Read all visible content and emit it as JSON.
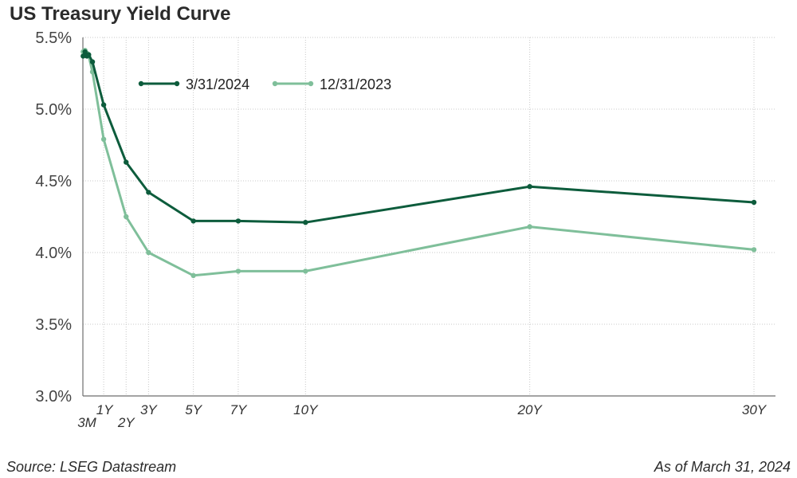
{
  "chart_data": {
    "type": "line",
    "title": "US Treasury Yield Curve",
    "xlabel": "",
    "ylabel": "",
    "unit": "%",
    "ylim": [
      3.0,
      5.5
    ],
    "yticks": [
      "3.0%",
      "3.5%",
      "4.0%",
      "4.5%",
      "5.0%",
      "5.5%"
    ],
    "ytick_values": [
      3.0,
      3.5,
      4.0,
      4.5,
      5.0,
      5.5
    ],
    "xlim_years": [
      0,
      31
    ],
    "x_tick_labels": [
      {
        "label": "3M",
        "years": 0.25
      },
      {
        "label": "1Y",
        "years": 1
      },
      {
        "label": "2Y",
        "years": 2
      },
      {
        "label": "3Y",
        "years": 3
      },
      {
        "label": "5Y",
        "years": 5
      },
      {
        "label": "7Y",
        "years": 7
      },
      {
        "label": "10Y",
        "years": 10
      },
      {
        "label": "20Y",
        "years": 20
      },
      {
        "label": "30Y",
        "years": 30
      }
    ],
    "grid": true,
    "legend_position": "top-left",
    "series": [
      {
        "name": "3/31/2024",
        "color": "#0d5c3c",
        "points": [
          {
            "maturity_years": 0.083,
            "yield": 5.37
          },
          {
            "maturity_years": 0.167,
            "yield": 5.4
          },
          {
            "maturity_years": 0.25,
            "yield": 5.37
          },
          {
            "maturity_years": 0.33,
            "yield": 5.38
          },
          {
            "maturity_years": 0.5,
            "yield": 5.33
          },
          {
            "maturity_years": 1,
            "yield": 5.03
          },
          {
            "maturity_years": 2,
            "yield": 4.63
          },
          {
            "maturity_years": 3,
            "yield": 4.42
          },
          {
            "maturity_years": 5,
            "yield": 4.22
          },
          {
            "maturity_years": 7,
            "yield": 4.22
          },
          {
            "maturity_years": 10,
            "yield": 4.21
          },
          {
            "maturity_years": 20,
            "yield": 4.46
          },
          {
            "maturity_years": 30,
            "yield": 4.35
          }
        ]
      },
      {
        "name": "12/31/2023",
        "color": "#7fbf9a",
        "points": [
          {
            "maturity_years": 0.083,
            "yield": 5.4
          },
          {
            "maturity_years": 0.167,
            "yield": 5.41
          },
          {
            "maturity_years": 0.25,
            "yield": 5.39
          },
          {
            "maturity_years": 0.33,
            "yield": 5.37
          },
          {
            "maturity_years": 0.5,
            "yield": 5.26
          },
          {
            "maturity_years": 1,
            "yield": 4.79
          },
          {
            "maturity_years": 2,
            "yield": 4.25
          },
          {
            "maturity_years": 3,
            "yield": 4.0
          },
          {
            "maturity_years": 5,
            "yield": 3.84
          },
          {
            "maturity_years": 7,
            "yield": 3.87
          },
          {
            "maturity_years": 10,
            "yield": 3.87
          },
          {
            "maturity_years": 20,
            "yield": 4.18
          },
          {
            "maturity_years": 30,
            "yield": 4.02
          }
        ]
      }
    ],
    "annotations": {
      "source": "Source: LSEG Datastream",
      "as_of": "As of March 31, 2024"
    }
  }
}
